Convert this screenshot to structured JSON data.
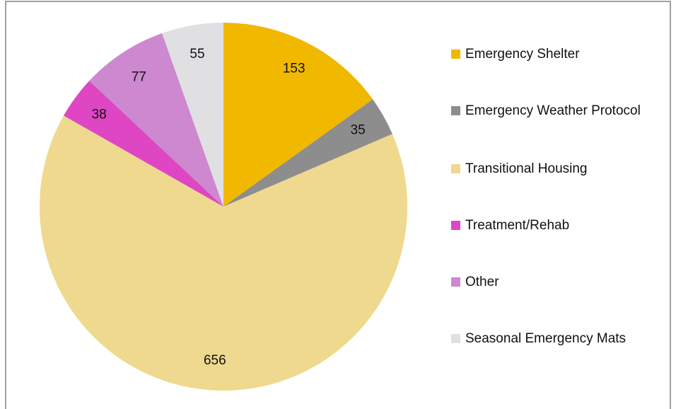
{
  "chart_data": {
    "type": "pie",
    "categories": [
      "Emergency Shelter",
      "Emergency Weather Protocol",
      "Transitional Housing",
      "Treatment/Rehab",
      "Other",
      "Seasonal Emergency Mats"
    ],
    "values": [
      153,
      35,
      656,
      38,
      77,
      55
    ],
    "colors": [
      "#f1b800",
      "#8d8d8d",
      "#efd98f",
      "#de46c3",
      "#cd88cf",
      "#e0e0e2"
    ],
    "legend": "right"
  }
}
